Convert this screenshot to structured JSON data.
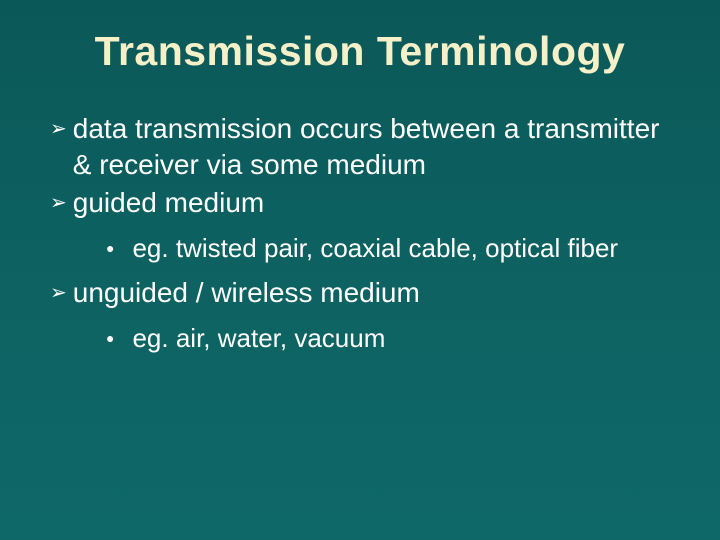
{
  "slide": {
    "title": "Transmission Terminology",
    "title_color": "#f5f0c8",
    "title_fontsize": 41,
    "background_color": "#0d6060",
    "text_color": "#ffffff",
    "body_fontsize": 28,
    "sub_fontsize": 26,
    "top_bullet_glyph": "➢",
    "sub_bullet_glyph": "●",
    "items": [
      {
        "text": "data transmission occurs between a transmitter & receiver via some medium",
        "subs": []
      },
      {
        "text": "guided medium",
        "subs": [
          {
            "text": "eg. twisted pair, coaxial cable, optical fiber"
          }
        ]
      },
      {
        "text": "unguided / wireless medium",
        "subs": [
          {
            "text": "eg. air, water, vacuum"
          }
        ]
      }
    ]
  }
}
